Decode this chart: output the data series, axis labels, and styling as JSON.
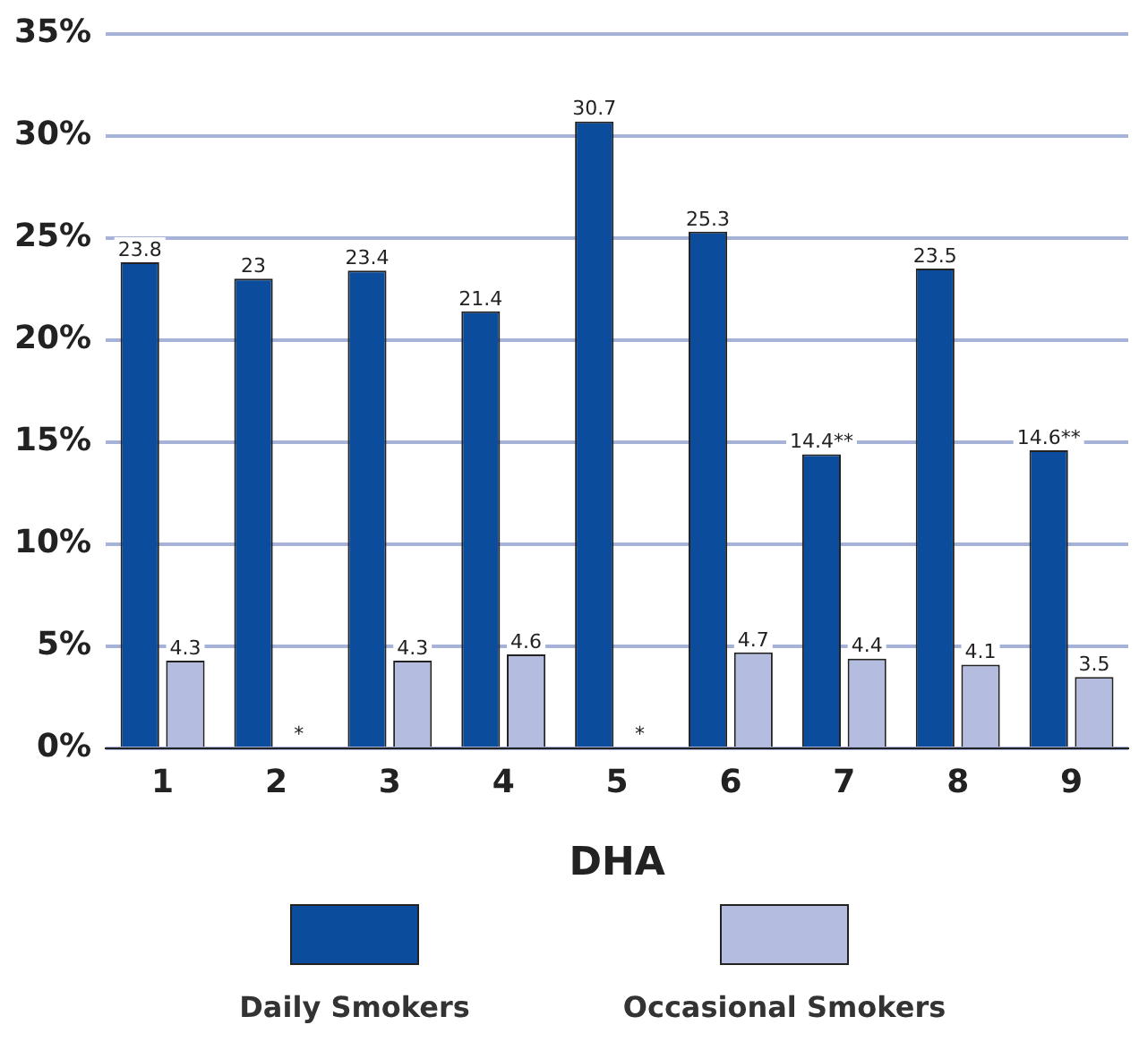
{
  "chart_data": {
    "type": "bar",
    "xlabel": "DHA",
    "categories": [
      "1",
      "2",
      "3",
      "4",
      "5",
      "6",
      "7",
      "8",
      "9"
    ],
    "series": [
      {
        "name": "Daily Smokers",
        "color": "#0b4c9c",
        "values": [
          23.8,
          23,
          23.4,
          21.4,
          30.7,
          25.3,
          14.4,
          23.5,
          14.6
        ],
        "value_labels": [
          "23.8",
          "23",
          "23.4",
          "21.4",
          "30.7",
          "25.3",
          "14.4**",
          "23.5",
          "14.6**"
        ]
      },
      {
        "name": "Occasional Smokers",
        "color": "#b4bcdf",
        "values": [
          4.3,
          null,
          4.3,
          4.6,
          null,
          4.7,
          4.4,
          4.1,
          3.5
        ],
        "value_labels": [
          "4.3",
          "*",
          "4.3",
          "4.6",
          "*",
          "4.7",
          "4.4",
          "4.1",
          "3.5"
        ]
      }
    ],
    "ylim": [
      0,
      35
    ],
    "yticks": [
      {
        "value": 0,
        "label": "0%"
      },
      {
        "value": 5,
        "label": "5%"
      },
      {
        "value": 10,
        "label": "10%"
      },
      {
        "value": 15,
        "label": "15%"
      },
      {
        "value": 20,
        "label": "20%"
      },
      {
        "value": 25,
        "label": "25%"
      },
      {
        "value": 30,
        "label": "30%"
      },
      {
        "value": 35,
        "label": "35%"
      }
    ],
    "grid": "y",
    "legend": "bottom"
  }
}
